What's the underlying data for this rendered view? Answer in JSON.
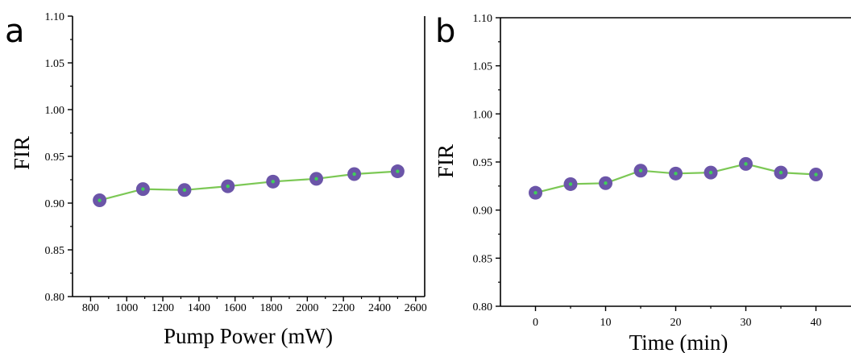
{
  "chart_data": [
    {
      "panel": "a",
      "type": "line",
      "title": "",
      "xlabel": "Pump Power (mW)",
      "ylabel": "FIR",
      "xlim": [
        700,
        2650
      ],
      "ylim": [
        0.8,
        1.1
      ],
      "xticks": [
        800,
        1000,
        1200,
        1400,
        1600,
        1800,
        2000,
        2200,
        2400,
        2600
      ],
      "yticks": [
        "0.80",
        "0.85",
        "0.90",
        "0.95",
        "1.00",
        "1.05",
        "1.10"
      ],
      "grid": false,
      "series": [
        {
          "x": [
            850,
            1090,
            1320,
            1560,
            1810,
            2050,
            2260,
            2500
          ],
          "y": [
            0.903,
            0.915,
            0.914,
            0.918,
            0.923,
            0.926,
            0.931,
            0.934
          ]
        }
      ]
    },
    {
      "panel": "b",
      "type": "line",
      "title": "",
      "xlabel": "Time (min)",
      "ylabel": "FIR",
      "xlim": [
        -5,
        45
      ],
      "ylim": [
        0.8,
        1.1
      ],
      "xticks": [
        "0",
        "10",
        "20",
        "30",
        "40"
      ],
      "yticks": [
        "0.80",
        "0.85",
        "0.90",
        "0.95",
        "1.00",
        "1.05",
        "1.10"
      ],
      "grid": false,
      "series": [
        {
          "x": [
            0,
            5,
            10,
            15,
            20,
            25,
            30,
            35,
            40
          ],
          "y": [
            0.918,
            0.927,
            0.928,
            0.941,
            0.938,
            0.939,
            0.948,
            0.939,
            0.937
          ]
        }
      ]
    }
  ],
  "style": {
    "line_color": "#7cc855",
    "marker_fill": "#6b55a8",
    "marker_center": "#3fcf5a"
  }
}
